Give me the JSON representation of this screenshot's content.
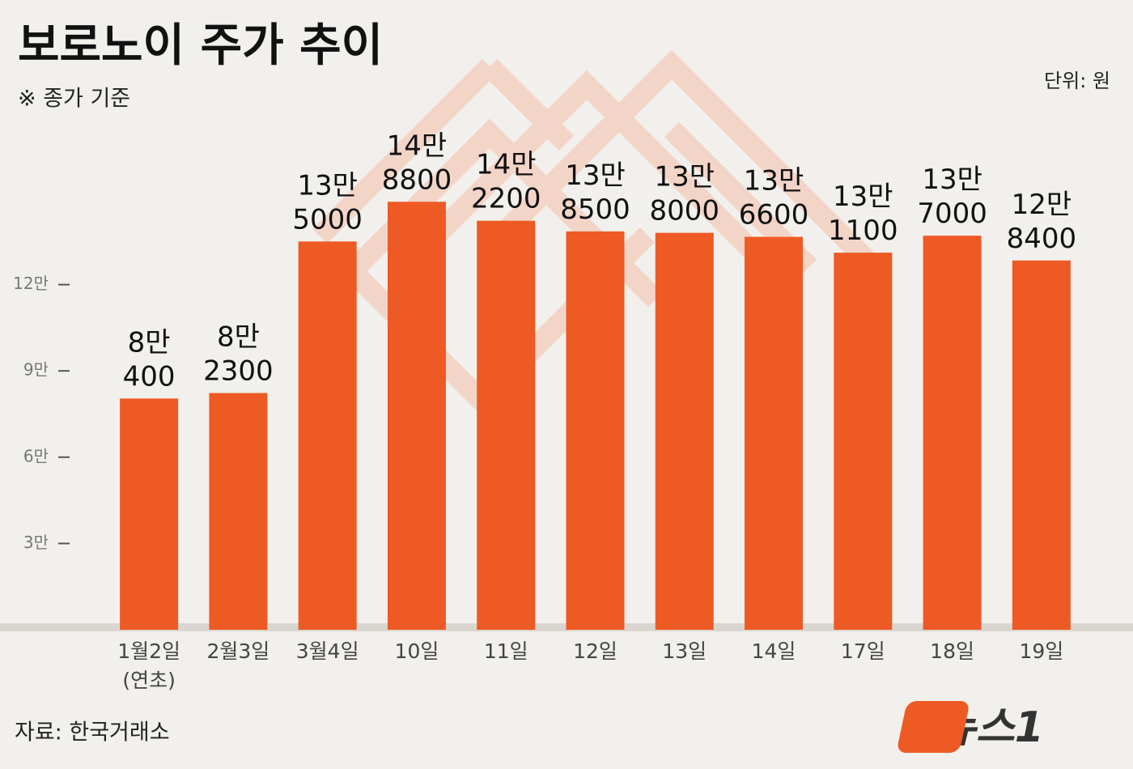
{
  "chart_data": {
    "type": "bar",
    "title": "보로노이 주가 추이",
    "subtitle": "※ 종가 기준",
    "unit_note": "단위: 원",
    "source": "자료: 한국거래소",
    "logo": "뉴스1",
    "categories": [
      "1월2일 (연초)",
      "2월3일",
      "3월4일",
      "10일",
      "11일",
      "12일",
      "13일",
      "14일",
      "17일",
      "18일",
      "19일"
    ],
    "values": [
      80400,
      82300,
      135000,
      148800,
      142200,
      138500,
      138000,
      136600,
      131100,
      137000,
      128400
    ],
    "value_labels": [
      "8만 400",
      "8만 2300",
      "13만 5000",
      "14만 8800",
      "14만 2200",
      "13만 8500",
      "13만 8000",
      "13만 6600",
      "13만 1100",
      "13만 7000",
      "12만 8400"
    ],
    "color": "#ee5a24",
    "ylim": [
      0,
      150000
    ],
    "yticks": [
      {
        "value": 30000,
        "label": "3만"
      },
      {
        "value": 60000,
        "label": "6만"
      },
      {
        "value": 90000,
        "label": "9만"
      },
      {
        "value": 120000,
        "label": "12만"
      }
    ],
    "grid": false
  }
}
